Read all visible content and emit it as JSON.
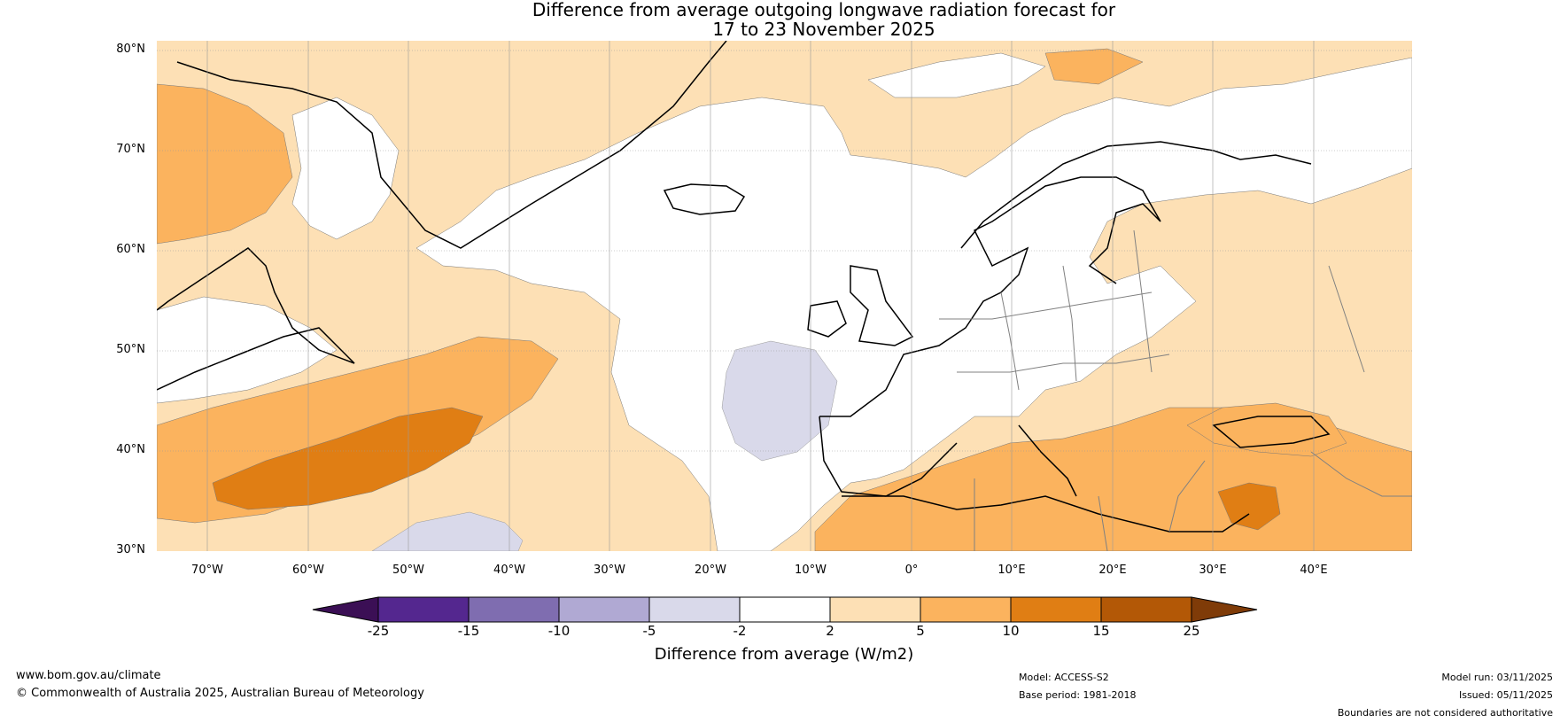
{
  "title": {
    "line1": "Difference from average outgoing longwave radiation forecast for",
    "line2": "17 to 23 November 2025"
  },
  "latitude_labels": [
    "80°N",
    "70°N",
    "60°N",
    "50°N",
    "40°N",
    "30°N"
  ],
  "longitude_labels": [
    "70°W",
    "60°W",
    "50°W",
    "40°W",
    "30°W",
    "20°W",
    "10°W",
    "0°",
    "10°E",
    "20°E",
    "30°E",
    "40°E"
  ],
  "legend": {
    "ticks": [
      "-25",
      "-15",
      "-10",
      "-5",
      "-2",
      "2",
      "5",
      "10",
      "15",
      "25"
    ],
    "colors": [
      "#3b0f55",
      "#54278f",
      "#7f6db0",
      "#b0a9d3",
      "#d9d9ea",
      "#ffffff",
      "#fde0b5",
      "#fbb35e",
      "#e07e14",
      "#b35806",
      "#7f3b08"
    ],
    "label": "Difference from average (W/m2)"
  },
  "footer": {
    "website": "www.bom.gov.au/climate",
    "copyright": "© Commonwealth of Australia 2025, Australian Bureau of Meteorology",
    "model": "Model: ACCESS-S2",
    "base_period": "Base period: 1981-2018",
    "model_run": "Model run: 03/11/2025",
    "issued": "Issued: 05/11/2025",
    "disclaimer": "Boundaries are not considered authoritative"
  }
}
